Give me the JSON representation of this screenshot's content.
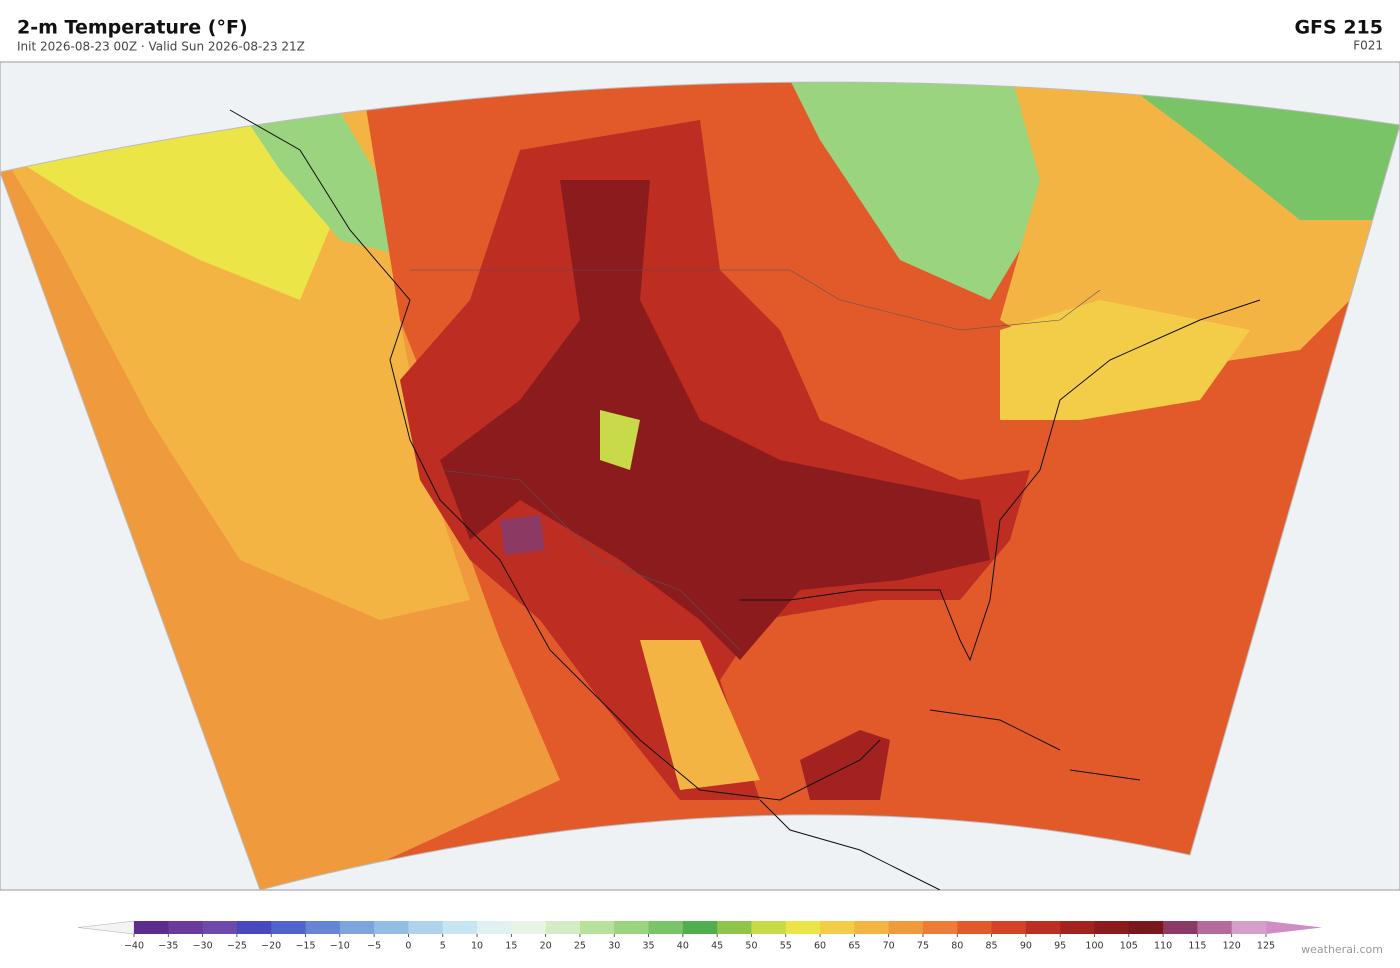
{
  "header": {
    "title": "2-m Temperature  (°F)",
    "subtitle": "Init 2026-08-23 00Z  ·  Valid Sun 2026-08-23 21Z",
    "model": "GFS  215",
    "forecast_hour": "F021"
  },
  "colorbar": {
    "ticks": [
      {
        "value": -40,
        "label": "−40"
      },
      {
        "value": -35,
        "label": "−35"
      },
      {
        "value": -30,
        "label": "−30"
      },
      {
        "value": -25,
        "label": "−25"
      },
      {
        "value": -20,
        "label": "−20"
      },
      {
        "value": -15,
        "label": "−15"
      },
      {
        "value": -10,
        "label": "−10"
      },
      {
        "value": -5,
        "label": "−5"
      },
      0,
      5,
      10,
      15,
      20,
      25,
      30,
      35,
      40,
      45,
      50,
      55,
      60,
      65,
      70,
      75,
      80,
      85,
      90,
      95,
      100,
      105,
      110,
      115,
      120,
      125
    ],
    "colors": [
      "#5b2d8e",
      "#6a3b9c",
      "#6e4aad",
      "#4a48bf",
      "#4f63cc",
      "#6685d4",
      "#7ea4dd",
      "#93bde4",
      "#aed3ea",
      "#c7e5f0",
      "#dff1f3",
      "#e7f5e4",
      "#d3ecc6",
      "#b8e19c",
      "#9bd47f",
      "#78c466",
      "#4fae4d",
      "#8fc54a",
      "#c8d94a",
      "#ece548",
      "#f4cd48",
      "#f4b443",
      "#f09a3e",
      "#ec7c37",
      "#e25a2a",
      "#d34426",
      "#bd2d22",
      "#a3221f",
      "#8c1b1e",
      "#7a171c",
      "#8c3a63",
      "#b56a9e",
      "#d4a0c9"
    ],
    "under_color": "#f4f4f4",
    "over_color": "#cf8cc5"
  },
  "footer": {
    "credit": "weatherai.com"
  }
}
